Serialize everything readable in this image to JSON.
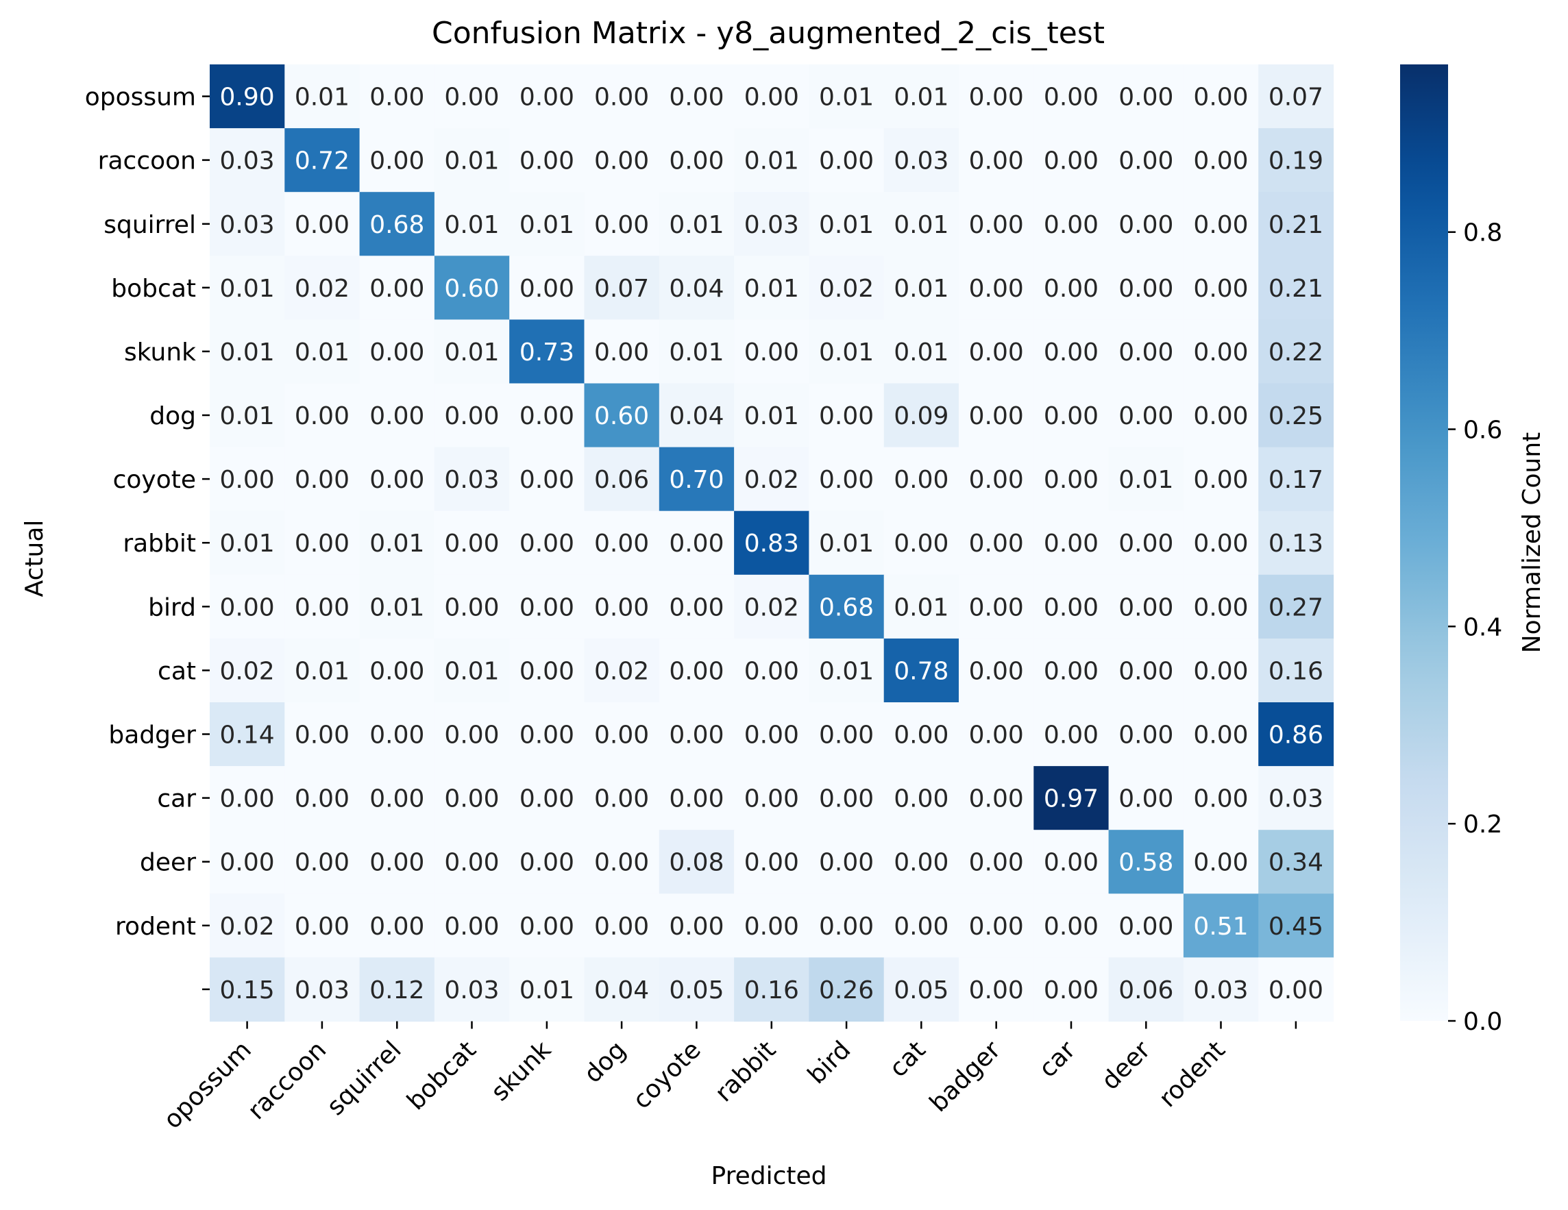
{
  "chart_data": {
    "type": "heatmap",
    "title": "Confusion Matrix - y8_augmented_2_cis_test",
    "xlabel": "Predicted",
    "ylabel": "Actual",
    "x_tick_labels": [
      "opossum",
      "raccoon",
      "squirrel",
      "bobcat",
      "skunk",
      "dog",
      "coyote",
      "rabbit",
      "bird",
      "cat",
      "badger",
      "car",
      "deer",
      "rodent",
      ""
    ],
    "y_tick_labels": [
      "opossum",
      "raccoon",
      "squirrel",
      "bobcat",
      "skunk",
      "dog",
      "coyote",
      "rabbit",
      "bird",
      "cat",
      "badger",
      "car",
      "deer",
      "rodent",
      ""
    ],
    "matrix": [
      [
        0.9,
        0.01,
        0.0,
        0.0,
        0.0,
        0.0,
        0.0,
        0.0,
        0.01,
        0.01,
        0.0,
        0.0,
        0.0,
        0.0,
        0.07
      ],
      [
        0.03,
        0.72,
        0.0,
        0.01,
        0.0,
        0.0,
        0.0,
        0.01,
        0.0,
        0.03,
        0.0,
        0.0,
        0.0,
        0.0,
        0.19
      ],
      [
        0.03,
        0.0,
        0.68,
        0.01,
        0.01,
        0.0,
        0.01,
        0.03,
        0.01,
        0.01,
        0.0,
        0.0,
        0.0,
        0.0,
        0.21
      ],
      [
        0.01,
        0.02,
        0.0,
        0.6,
        0.0,
        0.07,
        0.04,
        0.01,
        0.02,
        0.01,
        0.0,
        0.0,
        0.0,
        0.0,
        0.21
      ],
      [
        0.01,
        0.01,
        0.0,
        0.01,
        0.73,
        0.0,
        0.01,
        0.0,
        0.01,
        0.01,
        0.0,
        0.0,
        0.0,
        0.0,
        0.22
      ],
      [
        0.01,
        0.0,
        0.0,
        0.0,
        0.0,
        0.6,
        0.04,
        0.01,
        0.0,
        0.09,
        0.0,
        0.0,
        0.0,
        0.0,
        0.25
      ],
      [
        0.0,
        0.0,
        0.0,
        0.03,
        0.0,
        0.06,
        0.7,
        0.02,
        0.0,
        0.0,
        0.0,
        0.0,
        0.01,
        0.0,
        0.17
      ],
      [
        0.01,
        0.0,
        0.01,
        0.0,
        0.0,
        0.0,
        0.0,
        0.83,
        0.01,
        0.0,
        0.0,
        0.0,
        0.0,
        0.0,
        0.13
      ],
      [
        0.0,
        0.0,
        0.01,
        0.0,
        0.0,
        0.0,
        0.0,
        0.02,
        0.68,
        0.01,
        0.0,
        0.0,
        0.0,
        0.0,
        0.27
      ],
      [
        0.02,
        0.01,
        0.0,
        0.01,
        0.0,
        0.02,
        0.0,
        0.0,
        0.01,
        0.78,
        0.0,
        0.0,
        0.0,
        0.0,
        0.16
      ],
      [
        0.14,
        0.0,
        0.0,
        0.0,
        0.0,
        0.0,
        0.0,
        0.0,
        0.0,
        0.0,
        0.0,
        0.0,
        0.0,
        0.0,
        0.86
      ],
      [
        0.0,
        0.0,
        0.0,
        0.0,
        0.0,
        0.0,
        0.0,
        0.0,
        0.0,
        0.0,
        0.0,
        0.97,
        0.0,
        0.0,
        0.03
      ],
      [
        0.0,
        0.0,
        0.0,
        0.0,
        0.0,
        0.0,
        0.08,
        0.0,
        0.0,
        0.0,
        0.0,
        0.0,
        0.58,
        0.0,
        0.34
      ],
      [
        0.02,
        0.0,
        0.0,
        0.0,
        0.0,
        0.0,
        0.0,
        0.0,
        0.0,
        0.0,
        0.0,
        0.0,
        0.0,
        0.51,
        0.45
      ],
      [
        0.15,
        0.03,
        0.12,
        0.03,
        0.01,
        0.04,
        0.05,
        0.16,
        0.26,
        0.05,
        0.0,
        0.0,
        0.06,
        0.03,
        0.0
      ]
    ],
    "colorbar": {
      "label": "Normalized Count",
      "ticks": [
        "0.0",
        "0.2",
        "0.4",
        "0.6",
        "0.8"
      ],
      "range": [
        0,
        0.97
      ],
      "colormap": "Blues",
      "color_low": "#f7fbff",
      "color_high": "#08306b"
    }
  }
}
